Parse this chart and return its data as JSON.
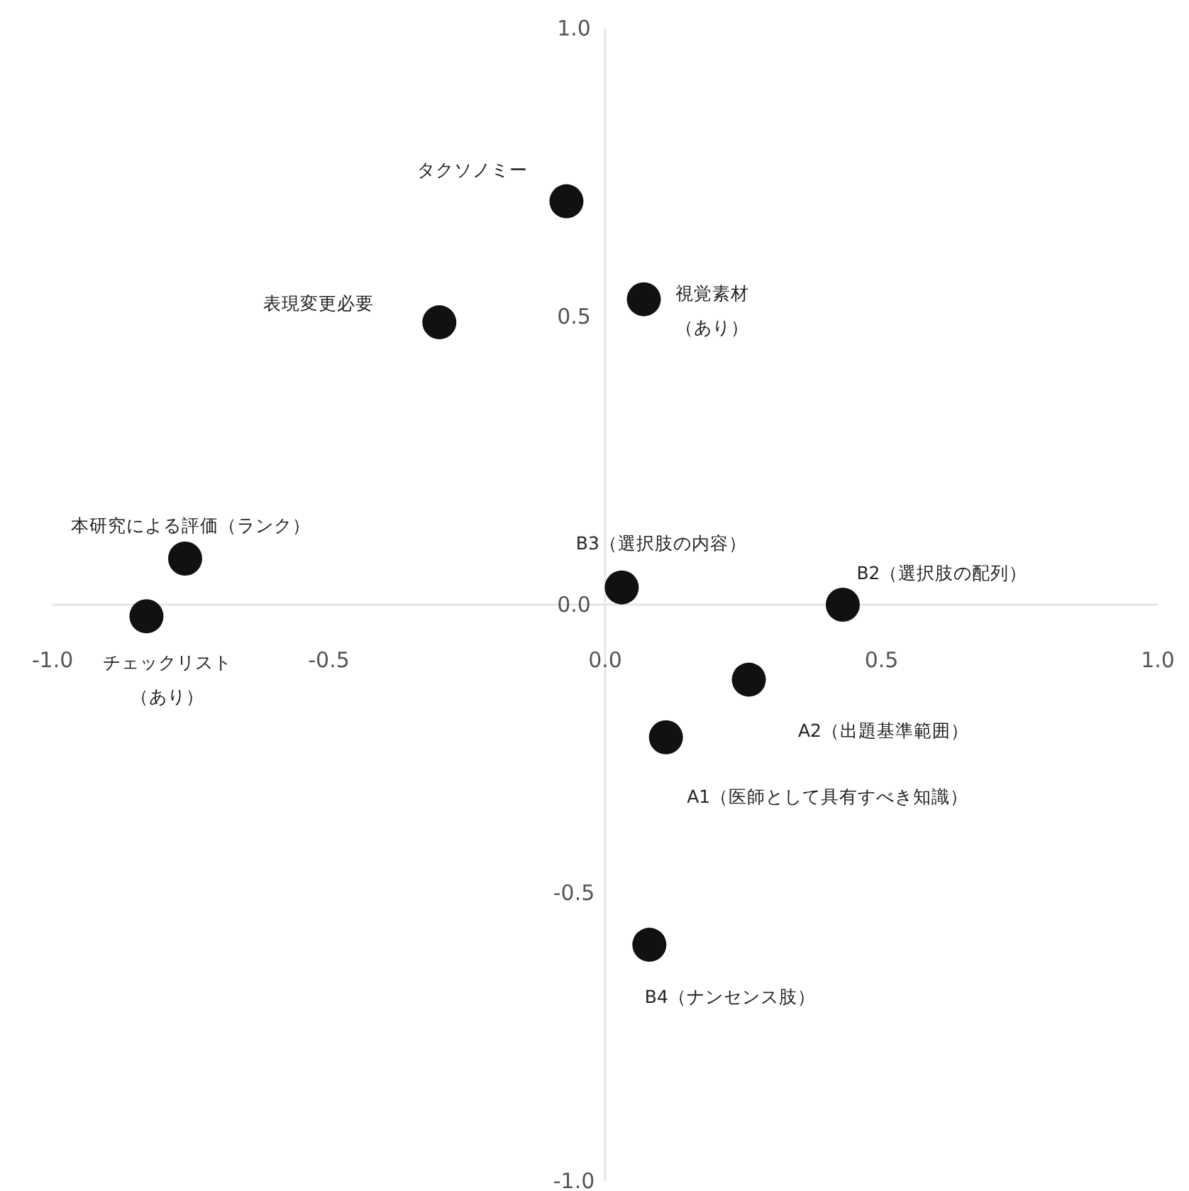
{
  "chart_data": {
    "type": "scatter",
    "marker": "circle",
    "grid": false,
    "xlim": [
      -1,
      1
    ],
    "ylim": [
      -1,
      1
    ],
    "xticks": [
      {
        "value": -1,
        "label": "-1.0"
      },
      {
        "value": -0.5,
        "label": "-0.5"
      },
      {
        "value": 0,
        "label": "0.0"
      },
      {
        "value": 0.5,
        "label": "0.5"
      },
      {
        "value": 1,
        "label": "1.0"
      }
    ],
    "yticks": [
      {
        "value": -1,
        "label": "-1.0"
      },
      {
        "value": -0.5,
        "label": "-0.5"
      },
      {
        "value": 0,
        "label": "0.0"
      },
      {
        "value": 0.5,
        "label": "0.5"
      },
      {
        "value": 1,
        "label": "1.0"
      }
    ],
    "series": [
      {
        "color": "#111111",
        "x": [
          -0.07,
          0.07,
          -0.3,
          -0.76,
          -0.83,
          0.03,
          0.43,
          0.26,
          0.11,
          0.08
        ],
        "values": [
          0.7,
          0.53,
          0.49,
          0.08,
          -0.02,
          0.03,
          0.0,
          -0.13,
          -0.23,
          -0.59
        ]
      }
    ],
    "annotations": [
      "タクソノミー",
      "視覚素材（あり）",
      "表現変更必要",
      "本研究による評価（ランク）",
      "チェックリスト（あり）",
      "B3（選択肢の内容）",
      "B2（選択肢の配列）",
      "A2（出題基準範囲）",
      "A1（医師として具有すべき知識）",
      "B4（ナンセンス肢）"
    ]
  }
}
